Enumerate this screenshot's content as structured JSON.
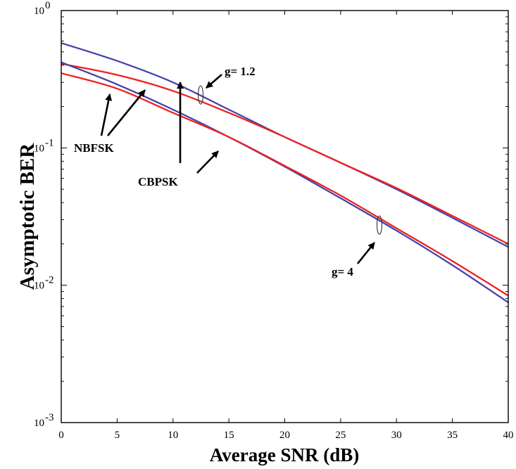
{
  "chart_data": {
    "type": "line",
    "xlabel": "Average SNR (dB)",
    "ylabel": "Asymptotic  BER",
    "xlim": [
      0,
      40
    ],
    "ylim": [
      0.001,
      1
    ],
    "yscale": "log",
    "grid": false,
    "x_ticks": [
      "0",
      "5",
      "10",
      "15",
      "20",
      "25",
      "30",
      "35",
      "40"
    ],
    "y_ticks": [
      {
        "base": "10",
        "exp": "0"
      },
      {
        "base": "10",
        "exp": "-1"
      },
      {
        "base": "10",
        "exp": "-2"
      },
      {
        "base": "10",
        "exp": "-3"
      }
    ],
    "series": [
      {
        "color": "#4444aa",
        "x": [
          0,
          5,
          10,
          15,
          20,
          25,
          30,
          35,
          40
        ],
        "y": [
          0.58,
          0.43,
          0.3,
          0.19,
          0.12,
          0.078,
          0.05,
          0.031,
          0.019
        ]
      },
      {
        "color": "#ee2222",
        "x": [
          0,
          5,
          10,
          15,
          20,
          25,
          30,
          35,
          40
        ],
        "y": [
          0.41,
          0.34,
          0.26,
          0.18,
          0.12,
          0.078,
          0.051,
          0.032,
          0.02
        ]
      },
      {
        "color": "#4444aa",
        "x": [
          0,
          5,
          10,
          15,
          20,
          25,
          30,
          35,
          40
        ],
        "y": [
          0.42,
          0.29,
          0.19,
          0.12,
          0.073,
          0.043,
          0.025,
          0.014,
          0.0075
        ]
      },
      {
        "color": "#ee2222",
        "x": [
          0,
          5,
          10,
          15,
          20,
          25,
          30,
          35,
          40
        ],
        "y": [
          0.35,
          0.27,
          0.18,
          0.12,
          0.074,
          0.045,
          0.026,
          0.015,
          0.0084
        ]
      }
    ],
    "annotations": {
      "g12": "g= 1.2",
      "g4": "g= 4",
      "nbfsk": "NBFSK",
      "cbpsk": "CBPSK"
    }
  }
}
